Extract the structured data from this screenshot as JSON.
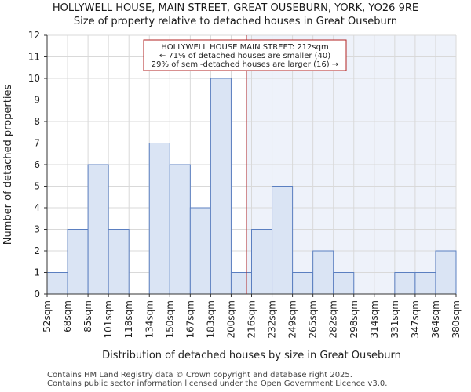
{
  "title": "HOLLYWELL HOUSE, MAIN STREET, GREAT OUSEBURN, YORK, YO26 9RE",
  "subtitle": "Size of property relative to detached houses in Great Ouseburn",
  "footer": {
    "line1": "Contains HM Land Registry data © Crown copyright and database right 2025.",
    "line2": "Contains public sector information licensed under the Open Government Licence v3.0."
  },
  "colors": {
    "bar_fill": "#dae4f4",
    "bar_stroke": "#5b7fc0",
    "marker_line": "#b22222",
    "shade_right": "#eef2fa",
    "annotation_border": "#b22222"
  },
  "chart_data": {
    "type": "bar",
    "xlabel": "Distribution of detached houses by size in Great Ouseburn",
    "ylabel": "Number of detached properties",
    "tick_labels": [
      "52sqm",
      "68sqm",
      "85sqm",
      "101sqm",
      "118sqm",
      "134sqm",
      "150sqm",
      "167sqm",
      "183sqm",
      "200sqm",
      "216sqm",
      "232sqm",
      "249sqm",
      "265sqm",
      "282sqm",
      "298sqm",
      "314sqm",
      "331sqm",
      "347sqm",
      "364sqm",
      "380sqm"
    ],
    "bin_edges": [
      52,
      68,
      85,
      101,
      118,
      134,
      150,
      167,
      183,
      200,
      216,
      232,
      249,
      265,
      282,
      298,
      314,
      331,
      347,
      364,
      380
    ],
    "values": [
      1,
      3,
      6,
      3,
      0,
      7,
      6,
      4,
      10,
      1,
      3,
      5,
      1,
      2,
      1,
      0,
      0,
      1,
      1,
      2
    ],
    "ylim": [
      0,
      12
    ],
    "yticks": [
      0,
      1,
      2,
      3,
      4,
      5,
      6,
      7,
      8,
      9,
      10,
      11,
      12
    ],
    "marker_value": 212,
    "annotation": {
      "line1": "HOLLYWELL HOUSE MAIN STREET: 212sqm",
      "line2": "← 71% of detached houses are smaller (40)",
      "line3": "29% of semi-detached houses are larger (16) →"
    }
  }
}
